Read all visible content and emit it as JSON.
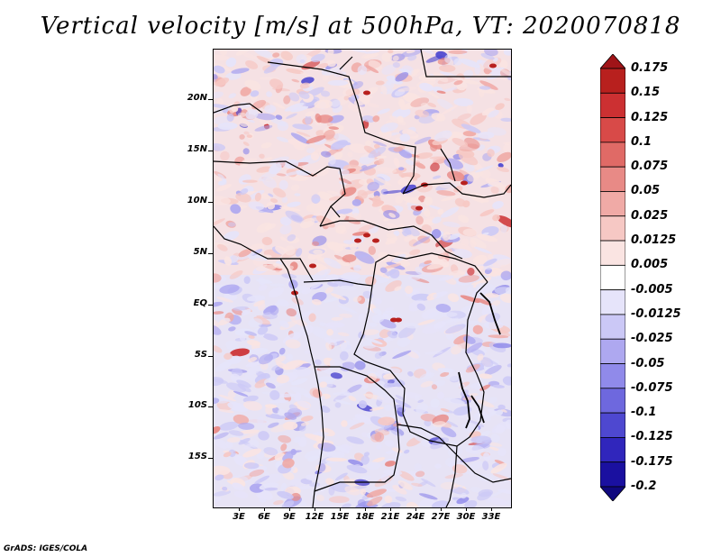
{
  "title": "Vertical velocity [m/s] at 500hPa, VT: 2020070818",
  "credit": "GrADS: IGES/COLA",
  "lat_labels": [
    "20N",
    "15N",
    "10N",
    "5N",
    "EQ",
    "5S",
    "10S",
    "15S"
  ],
  "lon_labels": [
    "3E",
    "6E",
    "9E",
    "12E",
    "15E",
    "18E",
    "21E",
    "24E",
    "27E",
    "30E",
    "33E"
  ],
  "colorbar": {
    "labels": [
      "0.175",
      "0.15",
      "0.125",
      "0.1",
      "0.075",
      "0.05",
      "0.025",
      "0.0125",
      "0.005",
      "-0.005",
      "-0.0125",
      "-0.025",
      "-0.05",
      "-0.075",
      "-0.1",
      "-0.125",
      "-0.175",
      "-0.2"
    ],
    "colors": [
      "#a01418",
      "#b8201e",
      "#cc3032",
      "#d84a48",
      "#e06a66",
      "#e88a86",
      "#f0aaa6",
      "#f6c8c4",
      "#fae4e2",
      "#ffffff",
      "#e6e4fa",
      "#cbc8f6",
      "#aea8f0",
      "#908aea",
      "#6e68de",
      "#4e48d0",
      "#3026bc",
      "#1a10a0",
      "#10087e"
    ]
  }
}
